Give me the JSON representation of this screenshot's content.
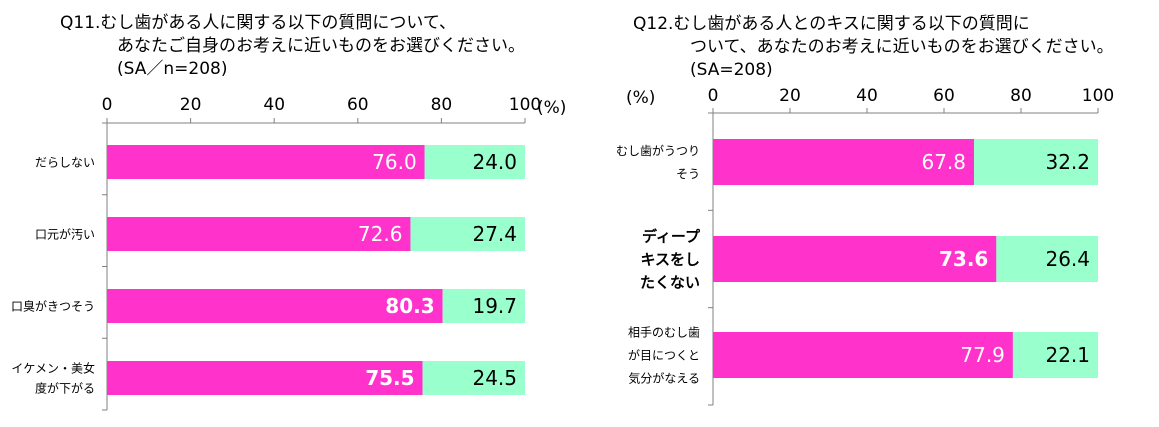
{
  "colors": {
    "pink": "#ff33cc",
    "green": "#99ffcc",
    "axis": "#808080"
  },
  "chart_data": [
    {
      "type": "bar",
      "stacked": true,
      "orientation": "horizontal",
      "title_lines": [
        "Q11.むし歯がある人に関する以下の質問について、",
        "あなたご自身のお考えに近いものをお選びください。",
        "(SA／n=208)"
      ],
      "unit_label": "(%)",
      "xlim": [
        0,
        100
      ],
      "ticks": [
        "0",
        "20",
        "40",
        "60",
        "80",
        "100"
      ],
      "categories": [
        {
          "lines": [
            "だらしない"
          ],
          "bold": false
        },
        {
          "lines": [
            "口元が汚い"
          ],
          "bold": false
        },
        {
          "lines": [
            "口臭がきつそう"
          ],
          "bold": false
        },
        {
          "lines": [
            "イケメン・美女",
            "度が下がる"
          ],
          "bold": false
        }
      ],
      "series": [
        {
          "values": [
            76.0,
            72.6,
            80.3,
            75.5
          ],
          "labels": [
            "76.0",
            "72.6",
            "80.3",
            "75.5"
          ],
          "bold": [
            false,
            false,
            true,
            true
          ],
          "color": "#ff33cc"
        },
        {
          "values": [
            24.0,
            27.4,
            19.7,
            24.5
          ],
          "labels": [
            "24.0",
            "27.4",
            "19.7",
            "24.5"
          ],
          "color": "#99ffcc"
        }
      ]
    },
    {
      "type": "bar",
      "stacked": true,
      "orientation": "horizontal",
      "title_lines": [
        "Q12.むし歯がある人とのキスに関する以下の質問に",
        "ついて、あなたのお考えに近いものをお選びください。",
        "(SA=208)"
      ],
      "unit_label": "(%)",
      "xlim": [
        0,
        100
      ],
      "ticks": [
        "0",
        "20",
        "40",
        "60",
        "80",
        "100"
      ],
      "categories": [
        {
          "lines": [
            "むし歯がうつり",
            "そう"
          ],
          "bold": false
        },
        {
          "lines": [
            "ディープ",
            "キスをし",
            "たくない"
          ],
          "bold": true
        },
        {
          "lines": [
            "相手のむし歯",
            "が目につくと",
            "気分がなえる"
          ],
          "bold": false
        }
      ],
      "series": [
        {
          "values": [
            67.8,
            73.6,
            77.9
          ],
          "labels": [
            "67.8",
            "73.6",
            "77.9"
          ],
          "bold": [
            false,
            true,
            false
          ],
          "color": "#ff33cc"
        },
        {
          "values": [
            32.2,
            26.4,
            22.1
          ],
          "labels": [
            "32.2",
            "26.4",
            "22.1"
          ],
          "color": "#99ffcc"
        }
      ]
    }
  ]
}
